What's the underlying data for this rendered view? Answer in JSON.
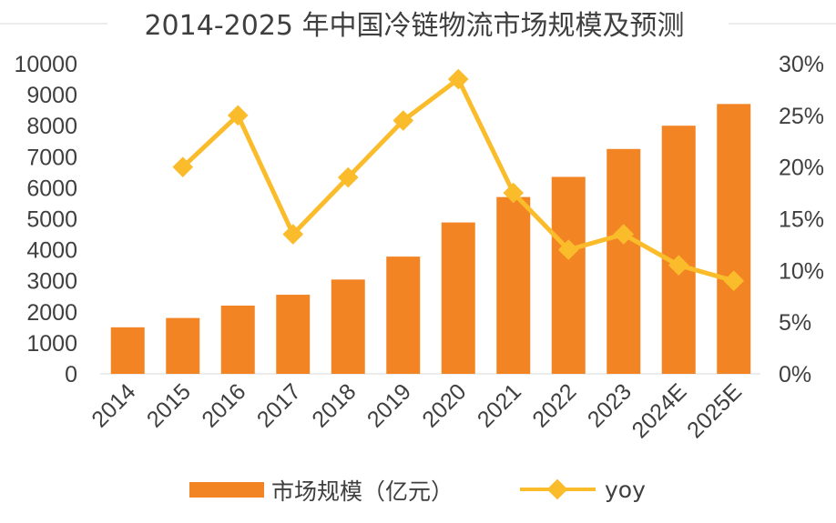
{
  "chart_data": {
    "type": "bar",
    "title": "2014-2025 年中国冷链物流市场规模及预测",
    "categories": [
      "2014",
      "2015",
      "2016",
      "2017",
      "2018",
      "2019",
      "2020",
      "2021",
      "2022",
      "2023",
      "2024E",
      "2025E"
    ],
    "series": [
      {
        "name": "市场规模（亿元）",
        "type": "bar",
        "axis": "left",
        "color": "#f28424",
        "values": [
          1500,
          1800,
          2200,
          2550,
          3040,
          3780,
          4880,
          5700,
          6350,
          7250,
          8000,
          8700
        ]
      },
      {
        "name": "yoy",
        "type": "line",
        "axis": "right",
        "color": "#fbbc2c",
        "marker": "diamond",
        "values": [
          null,
          0.2,
          0.25,
          0.135,
          0.19,
          0.245,
          0.285,
          0.175,
          0.12,
          0.135,
          0.105,
          0.09
        ]
      }
    ],
    "y_left": {
      "min": 0,
      "max": 10000,
      "ticks": [
        0,
        1000,
        2000,
        3000,
        4000,
        5000,
        6000,
        7000,
        8000,
        9000,
        10000
      ],
      "tick_labels": [
        "0",
        "1000",
        "2000",
        "3000",
        "4000",
        "5000",
        "6000",
        "7000",
        "8000",
        "9000",
        "10000"
      ]
    },
    "y_right": {
      "min": 0,
      "max": 0.3,
      "ticks": [
        0,
        0.05,
        0.1,
        0.15,
        0.2,
        0.25,
        0.3
      ],
      "tick_labels": [
        "0%",
        "5%",
        "10%",
        "15%",
        "20%",
        "25%",
        "30%"
      ]
    },
    "grid": false,
    "legend_position": "bottom",
    "legend": [
      {
        "label": "市场规模（亿元）",
        "series": 0
      },
      {
        "label": "yoy",
        "series": 1
      }
    ]
  }
}
